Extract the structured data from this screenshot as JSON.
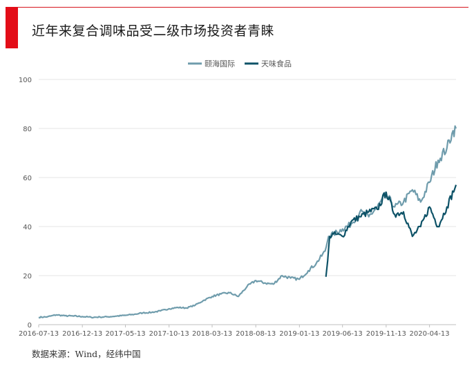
{
  "header": {
    "title": "近年来复合调味品受二级市场投资者青睐",
    "accent_color": "#e30d18"
  },
  "footer": {
    "source": "数据来源：Wind，经纬中国"
  },
  "chart_data": {
    "type": "line",
    "title": "近年来复合调味品受二级市场投资者青睐",
    "xlabel": "",
    "ylabel": "",
    "ylim": [
      0,
      100
    ],
    "y_ticks": [
      "0",
      "20",
      "40",
      "60",
      "80",
      "100"
    ],
    "x_tick_labels": [
      "2016-07-13",
      "2016-12-13",
      "2017-05-13",
      "2017-10-13",
      "2018-03-13",
      "2018-08-13",
      "2019-01-13",
      "2019-06-13",
      "2019-11-13",
      "2020-04-13"
    ],
    "x_range": [
      "2016-07-13",
      "2020-07-15"
    ],
    "grid": "horizontal",
    "legend_position": "top-center",
    "series": [
      {
        "name": "颐海国际",
        "color": "#6f9cac",
        "points": [
          [
            "2016-07-13",
            3.0
          ],
          [
            "2016-08-13",
            3.2
          ],
          [
            "2016-09-13",
            4.0
          ],
          [
            "2016-10-13",
            3.6
          ],
          [
            "2016-11-13",
            3.5
          ],
          [
            "2016-12-13",
            3.3
          ],
          [
            "2017-01-13",
            3.0
          ],
          [
            "2017-02-13",
            3.1
          ],
          [
            "2017-03-13",
            3.2
          ],
          [
            "2017-04-13",
            3.5
          ],
          [
            "2017-05-13",
            3.8
          ],
          [
            "2017-06-13",
            4.2
          ],
          [
            "2017-07-13",
            4.8
          ],
          [
            "2017-08-13",
            5.0
          ],
          [
            "2017-09-13",
            5.6
          ],
          [
            "2017-10-13",
            6.5
          ],
          [
            "2017-11-13",
            7.0
          ],
          [
            "2017-12-13",
            6.8
          ],
          [
            "2018-01-13",
            8.0
          ],
          [
            "2018-02-13",
            10.0
          ],
          [
            "2018-03-13",
            11.5
          ],
          [
            "2018-04-13",
            12.5
          ],
          [
            "2018-05-13",
            13.0
          ],
          [
            "2018-06-13",
            11.5
          ],
          [
            "2018-07-13",
            15.5
          ],
          [
            "2018-08-13",
            18.0
          ],
          [
            "2018-09-13",
            17.0
          ],
          [
            "2018-10-13",
            16.5
          ],
          [
            "2018-11-13",
            20.0
          ],
          [
            "2018-12-13",
            19.0
          ],
          [
            "2019-01-13",
            18.5
          ],
          [
            "2019-02-13",
            22.0
          ],
          [
            "2019-03-13",
            25.0
          ],
          [
            "2019-04-13",
            30.0
          ],
          [
            "2019-04-25",
            36.0
          ],
          [
            "2019-05-13",
            37.0
          ],
          [
            "2019-06-13",
            39.0
          ],
          [
            "2019-07-13",
            41.0
          ],
          [
            "2019-08-13",
            46.0
          ],
          [
            "2019-09-13",
            44.0
          ],
          [
            "2019-10-13",
            48.0
          ],
          [
            "2019-11-13",
            53.0
          ],
          [
            "2019-12-13",
            48.0
          ],
          [
            "2020-01-13",
            50.0
          ],
          [
            "2020-02-13",
            55.0
          ],
          [
            "2020-03-13",
            50.0
          ],
          [
            "2020-04-13",
            58.0
          ],
          [
            "2020-05-13",
            67.0
          ],
          [
            "2020-06-13",
            72.0
          ],
          [
            "2020-07-01",
            78.0
          ],
          [
            "2020-07-15",
            80.0
          ]
        ]
      },
      {
        "name": "天味食品",
        "color": "#0d5267",
        "points": [
          [
            "2019-04-16",
            19.5
          ],
          [
            "2019-04-22",
            26.0
          ],
          [
            "2019-04-29",
            36.0
          ],
          [
            "2019-05-13",
            37.0
          ],
          [
            "2019-06-13",
            36.0
          ],
          [
            "2019-07-13",
            42.0
          ],
          [
            "2019-08-13",
            44.0
          ],
          [
            "2019-09-13",
            46.0
          ],
          [
            "2019-10-13",
            47.0
          ],
          [
            "2019-11-13",
            54.0
          ],
          [
            "2019-12-13",
            45.0
          ],
          [
            "2020-01-13",
            46.0
          ],
          [
            "2020-02-13",
            36.0
          ],
          [
            "2020-03-13",
            40.0
          ],
          [
            "2020-04-13",
            48.0
          ],
          [
            "2020-05-13",
            40.0
          ],
          [
            "2020-06-13",
            48.0
          ],
          [
            "2020-07-15",
            57.0
          ]
        ]
      }
    ]
  }
}
